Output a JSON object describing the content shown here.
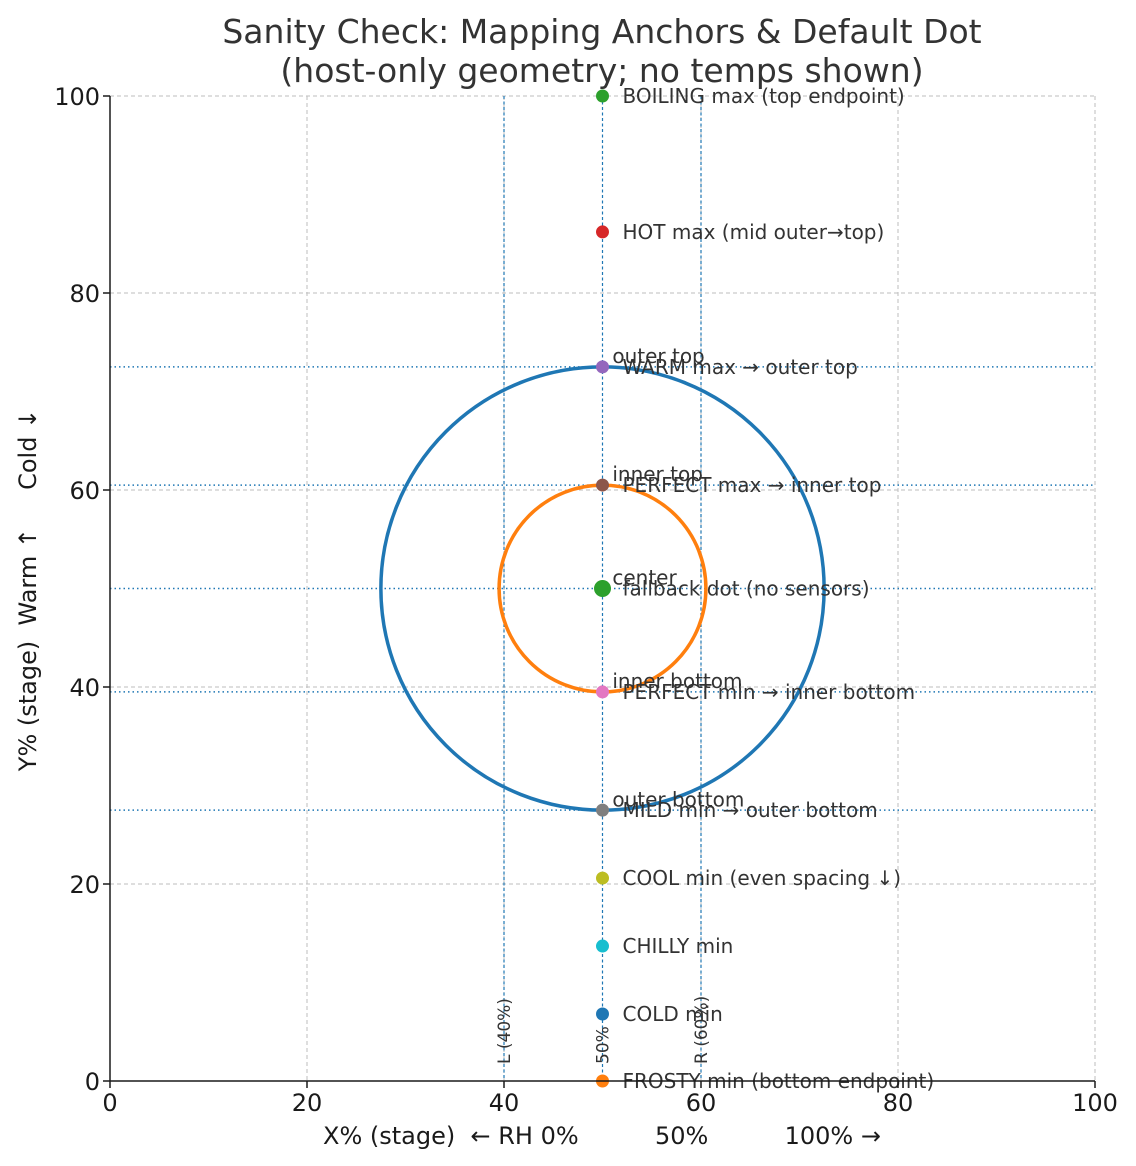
{
  "chart_data": {
    "type": "scatter",
    "title": [
      "Sanity Check: Mapping Anchors & Default Dot",
      "(host-only geometry; no temps shown)"
    ],
    "xlabel": "X% (stage)  ← RH 0%          50%          100% →",
    "ylabel": "Y% (stage)  Warm ↑     Cold ↓",
    "xlim": [
      0,
      100
    ],
    "ylim": [
      0,
      100
    ],
    "xticks": [
      0,
      20,
      40,
      60,
      80,
      100
    ],
    "yticks": [
      0,
      20,
      40,
      60,
      80,
      100
    ],
    "grid": true,
    "circles": [
      {
        "name": "outer",
        "cx": 50,
        "cy": 50,
        "r": 22.5,
        "color": "#1f77b4"
      },
      {
        "name": "inner",
        "cx": 50,
        "cy": 50,
        "r": 10.5,
        "color": "#ff7f0e"
      }
    ],
    "hlines": [
      72.5,
      60.5,
      50,
      39.5,
      27.5
    ],
    "vlines": [
      {
        "x": 40,
        "label": "L (40%)"
      },
      {
        "x": 50,
        "label": "50%"
      },
      {
        "x": 60,
        "label": "R (60%)"
      }
    ],
    "points": [
      {
        "x": 50,
        "y": 100,
        "label": "BOILING max (top endpoint)",
        "color": "#2ca02c"
      },
      {
        "x": 50,
        "y": 86.2,
        "label": "HOT max (mid outer→top)",
        "color": "#d62728"
      },
      {
        "x": 50,
        "y": 72.5,
        "label": "WARM max → outer top",
        "color": "#9467bd"
      },
      {
        "x": 50,
        "y": 60.5,
        "label": "PERFECT max → inner top",
        "color": "#8c564b"
      },
      {
        "x": 50,
        "y": 50,
        "label": "fallback dot (no sensors)",
        "color": "#2ca02c",
        "big": true
      },
      {
        "x": 50,
        "y": 39.5,
        "label": "PERFECT min → inner bottom",
        "color": "#e377c2"
      },
      {
        "x": 50,
        "y": 27.5,
        "label": "MILD min → outer bottom",
        "color": "#7f7f7f"
      },
      {
        "x": 50,
        "y": 20.6,
        "label": "COOL min (even spacing ↓)",
        "color": "#bcbd22"
      },
      {
        "x": 50,
        "y": 13.7,
        "label": "CHILLY min",
        "color": "#17becf"
      },
      {
        "x": 50,
        "y": 6.8,
        "label": "COLD min",
        "color": "#1f77b4"
      },
      {
        "x": 50,
        "y": 0,
        "label": "FROSTY min (bottom endpoint)",
        "color": "#ff7f0e"
      }
    ],
    "annotations": [
      {
        "x": 51,
        "y": 73.6,
        "text": "outer top"
      },
      {
        "x": 51,
        "y": 61.6,
        "text": "inner top"
      },
      {
        "x": 51,
        "y": 51.1,
        "text": "center"
      },
      {
        "x": 51,
        "y": 40.6,
        "text": "inner bottom"
      },
      {
        "x": 51,
        "y": 28.6,
        "text": "outer bottom"
      }
    ]
  }
}
